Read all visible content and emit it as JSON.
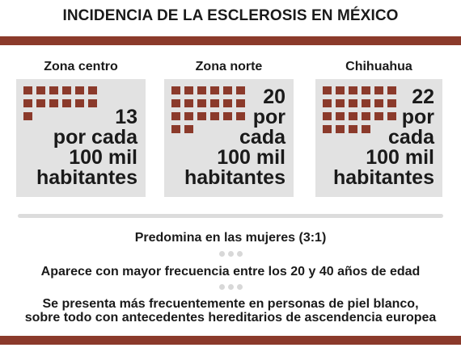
{
  "title": "INCIDENCIA DE LA ESCLEROSIS EN MÉXICO",
  "zones": [
    {
      "label": "Zona centro",
      "number": "13",
      "line2": "por cada",
      "line3": "100 mil",
      "line4": "habitantes",
      "dots": 13
    },
    {
      "label": "Zona norte",
      "number": "20",
      "line2": "por",
      "line3": "cada",
      "line4": "100 mil",
      "line5": "habitantes",
      "dots": 20
    },
    {
      "label": "Chihuahua",
      "number": "22",
      "line2": "por",
      "line3": "cada",
      "line4": "100 mil",
      "line5": "habitantes",
      "dots": 22
    }
  ],
  "facts": [
    "Predomina en las mujeres (3:1)",
    "Aparece con mayor frecuencia entre los 20 y 40 años de edad",
    "Se presenta más frecuentemente en personas de piel blanco,",
    "sobre todo con antecedentes hereditarios de ascendencia europea"
  ],
  "colors": {
    "accent": "#8b3a2b",
    "box": "#e2e2e2",
    "divider": "#dcdcdc"
  }
}
